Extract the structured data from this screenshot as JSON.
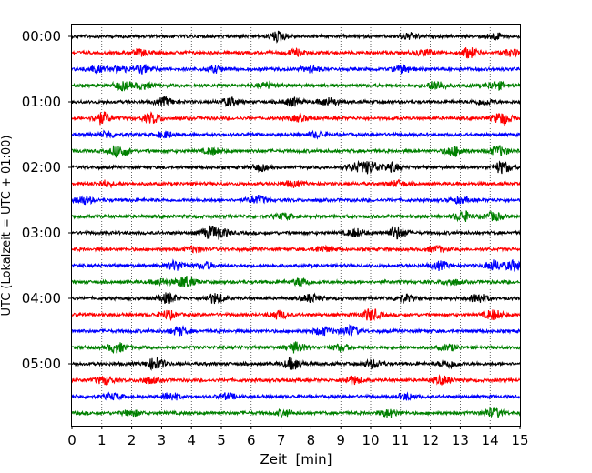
{
  "chart_data": {
    "type": "line",
    "xlabel": "Zeit  [min]",
    "ylabel": "UTC (Lokalzeit = UTC + 01:00)",
    "xlim": [
      0,
      15
    ],
    "x_ticks": [
      "0",
      "1",
      "2",
      "3",
      "4",
      "5",
      "6",
      "7",
      "8",
      "9",
      "10",
      "11",
      "12",
      "13",
      "14",
      "15"
    ],
    "y_ticks": [
      "00:00",
      "01:00",
      "02:00",
      "03:00",
      "04:00",
      "05:00"
    ],
    "grid": "vertical dotted at each minute",
    "colors": [
      "#000000",
      "#ff0000",
      "#0000ff",
      "#008000"
    ],
    "traces": [
      {
        "start": "00:00",
        "color": "#000000",
        "events": [
          {
            "x": 6.9,
            "amp": 5
          },
          {
            "x": 11.3,
            "amp": 3
          },
          {
            "x": 14.2,
            "amp": 3
          }
        ]
      },
      {
        "start": "00:15",
        "color": "#ff0000",
        "events": [
          {
            "x": 2.3,
            "amp": 3
          },
          {
            "x": 7.5,
            "amp": 3
          },
          {
            "x": 11.8,
            "amp": 3
          },
          {
            "x": 13.3,
            "amp": 5
          },
          {
            "x": 14.7,
            "amp": 3
          }
        ]
      },
      {
        "start": "00:30",
        "color": "#0000ff",
        "events": [
          {
            "x": 0.8,
            "amp": 3
          },
          {
            "x": 1.6,
            "amp": 3
          },
          {
            "x": 2.4,
            "amp": 4
          },
          {
            "x": 4.8,
            "amp": 3
          },
          {
            "x": 8.0,
            "amp": 3
          },
          {
            "x": 11.1,
            "amp": 4
          }
        ]
      },
      {
        "start": "00:45",
        "color": "#008000",
        "events": [
          {
            "x": 1.7,
            "amp": 4
          },
          {
            "x": 2.4,
            "amp": 3
          },
          {
            "x": 6.5,
            "amp": 3
          },
          {
            "x": 12.2,
            "amp": 5
          },
          {
            "x": 14.2,
            "amp": 4
          }
        ]
      },
      {
        "start": "01:00",
        "color": "#000000",
        "events": [
          {
            "x": 3.1,
            "amp": 4
          },
          {
            "x": 5.3,
            "amp": 4
          },
          {
            "x": 7.4,
            "amp": 4
          },
          {
            "x": 8.6,
            "amp": 4
          },
          {
            "x": 13.8,
            "amp": 3
          }
        ]
      },
      {
        "start": "01:15",
        "color": "#ff0000",
        "events": [
          {
            "x": 1.0,
            "amp": 6
          },
          {
            "x": 2.7,
            "amp": 5
          },
          {
            "x": 7.6,
            "amp": 3
          },
          {
            "x": 14.4,
            "amp": 6
          }
        ]
      },
      {
        "start": "01:30",
        "color": "#0000ff",
        "events": [
          {
            "x": 1.2,
            "amp": 3
          },
          {
            "x": 3.1,
            "amp": 3
          },
          {
            "x": 8.2,
            "amp": 3
          }
        ]
      },
      {
        "start": "01:45",
        "color": "#008000",
        "events": [
          {
            "x": 1.6,
            "amp": 6
          },
          {
            "x": 4.7,
            "amp": 3
          },
          {
            "x": 12.8,
            "amp": 5
          },
          {
            "x": 14.3,
            "amp": 5
          }
        ]
      },
      {
        "start": "02:00",
        "color": "#000000",
        "events": [
          {
            "x": 6.3,
            "amp": 3
          },
          {
            "x": 9.5,
            "amp": 4
          },
          {
            "x": 10.0,
            "amp": 6
          },
          {
            "x": 10.7,
            "amp": 4
          },
          {
            "x": 14.4,
            "amp": 6
          }
        ]
      },
      {
        "start": "02:15",
        "color": "#ff0000",
        "events": [
          {
            "x": 1.1,
            "amp": 3
          },
          {
            "x": 7.4,
            "amp": 3
          },
          {
            "x": 10.9,
            "amp": 3
          }
        ]
      },
      {
        "start": "02:30",
        "color": "#0000ff",
        "events": [
          {
            "x": 0.4,
            "amp": 4
          },
          {
            "x": 6.2,
            "amp": 4
          },
          {
            "x": 13.0,
            "amp": 3
          }
        ]
      },
      {
        "start": "02:45",
        "color": "#008000",
        "events": [
          {
            "x": 7.1,
            "amp": 3
          },
          {
            "x": 13.1,
            "amp": 5
          },
          {
            "x": 14.1,
            "amp": 4
          }
        ]
      },
      {
        "start": "03:00",
        "color": "#000000",
        "events": [
          {
            "x": 4.6,
            "amp": 5
          },
          {
            "x": 5.0,
            "amp": 4
          },
          {
            "x": 9.5,
            "amp": 4
          },
          {
            "x": 10.9,
            "amp": 6
          }
        ]
      },
      {
        "start": "03:15",
        "color": "#ff0000",
        "events": [
          {
            "x": 4.1,
            "amp": 3
          },
          {
            "x": 8.4,
            "amp": 3
          },
          {
            "x": 12.2,
            "amp": 3
          }
        ]
      },
      {
        "start": "03:30",
        "color": "#0000ff",
        "events": [
          {
            "x": 3.5,
            "amp": 5
          },
          {
            "x": 4.5,
            "amp": 3
          },
          {
            "x": 12.3,
            "amp": 4
          },
          {
            "x": 14.1,
            "amp": 5
          },
          {
            "x": 14.8,
            "amp": 5
          }
        ]
      },
      {
        "start": "03:45",
        "color": "#008000",
        "events": [
          {
            "x": 3.0,
            "amp": 3
          },
          {
            "x": 3.8,
            "amp": 6
          },
          {
            "x": 7.7,
            "amp": 4
          },
          {
            "x": 12.7,
            "amp": 3
          }
        ]
      },
      {
        "start": "04:00",
        "color": "#000000",
        "events": [
          {
            "x": 3.2,
            "amp": 5
          },
          {
            "x": 4.8,
            "amp": 5
          },
          {
            "x": 8.0,
            "amp": 4
          },
          {
            "x": 11.1,
            "amp": 4
          },
          {
            "x": 13.6,
            "amp": 5
          }
        ]
      },
      {
        "start": "04:15",
        "color": "#ff0000",
        "events": [
          {
            "x": 3.2,
            "amp": 4
          },
          {
            "x": 6.9,
            "amp": 4
          },
          {
            "x": 10.0,
            "amp": 6
          },
          {
            "x": 14.1,
            "amp": 5
          }
        ]
      },
      {
        "start": "04:30",
        "color": "#0000ff",
        "events": [
          {
            "x": 3.6,
            "amp": 4
          },
          {
            "x": 8.4,
            "amp": 4
          },
          {
            "x": 9.3,
            "amp": 5
          }
        ]
      },
      {
        "start": "04:45",
        "color": "#008000",
        "events": [
          {
            "x": 1.5,
            "amp": 5
          },
          {
            "x": 7.5,
            "amp": 5
          },
          {
            "x": 9.0,
            "amp": 3
          },
          {
            "x": 12.6,
            "amp": 3
          }
        ]
      },
      {
        "start": "05:00",
        "color": "#000000",
        "events": [
          {
            "x": 2.8,
            "amp": 6
          },
          {
            "x": 7.4,
            "amp": 6
          },
          {
            "x": 10.1,
            "amp": 4
          },
          {
            "x": 12.6,
            "amp": 4
          }
        ]
      },
      {
        "start": "05:15",
        "color": "#ff0000",
        "events": [
          {
            "x": 1.1,
            "amp": 4
          },
          {
            "x": 2.6,
            "amp": 3
          },
          {
            "x": 9.4,
            "amp": 4
          },
          {
            "x": 12.4,
            "amp": 4
          }
        ]
      },
      {
        "start": "05:30",
        "color": "#0000ff",
        "events": [
          {
            "x": 1.4,
            "amp": 3
          },
          {
            "x": 3.3,
            "amp": 4
          },
          {
            "x": 5.2,
            "amp": 3
          },
          {
            "x": 11.2,
            "amp": 3
          }
        ]
      },
      {
        "start": "05:45",
        "color": "#008000",
        "events": [
          {
            "x": 2.0,
            "amp": 3
          },
          {
            "x": 7.1,
            "amp": 3
          },
          {
            "x": 10.6,
            "amp": 4
          },
          {
            "x": 14.1,
            "amp": 5
          }
        ]
      }
    ]
  }
}
